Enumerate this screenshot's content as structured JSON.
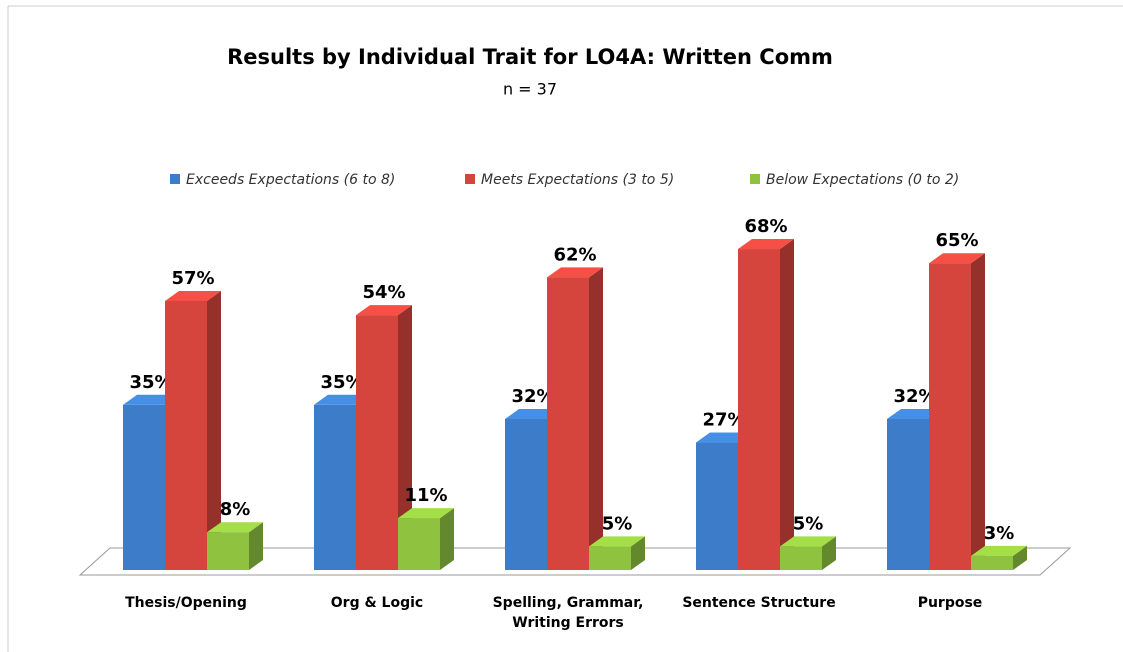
{
  "chart_data": {
    "type": "bar3d",
    "title": "Results by Individual Trait for LO4A: Written Comm",
    "subtitle": "n = 37",
    "categories": [
      "Thesis/Opening",
      "Org & Logic",
      "Spelling, Grammar, Writing Errors",
      "Sentence Structure",
      "Purpose"
    ],
    "series": [
      {
        "name": "Exceeds Expectations (6 to 8)",
        "color": "#3d7cc9",
        "values": [
          35,
          35,
          32,
          27,
          32
        ],
        "value_labels": [
          "35%",
          "35%",
          "32%",
          "27%",
          "32%"
        ]
      },
      {
        "name": "Meets Expectations (3 to 5)",
        "color": "#d6453d",
        "values": [
          57,
          54,
          62,
          68,
          65
        ],
        "value_labels": [
          "57%",
          "54%",
          "62%",
          "68%",
          "65%"
        ]
      },
      {
        "name": "Below Expectations (0 to 2)",
        "color": "#8fc23f",
        "values": [
          8,
          11,
          5,
          5,
          3
        ],
        "value_labels": [
          "8%",
          "11%",
          "5%",
          "5%",
          "3%"
        ]
      }
    ],
    "legend": "top"
  }
}
